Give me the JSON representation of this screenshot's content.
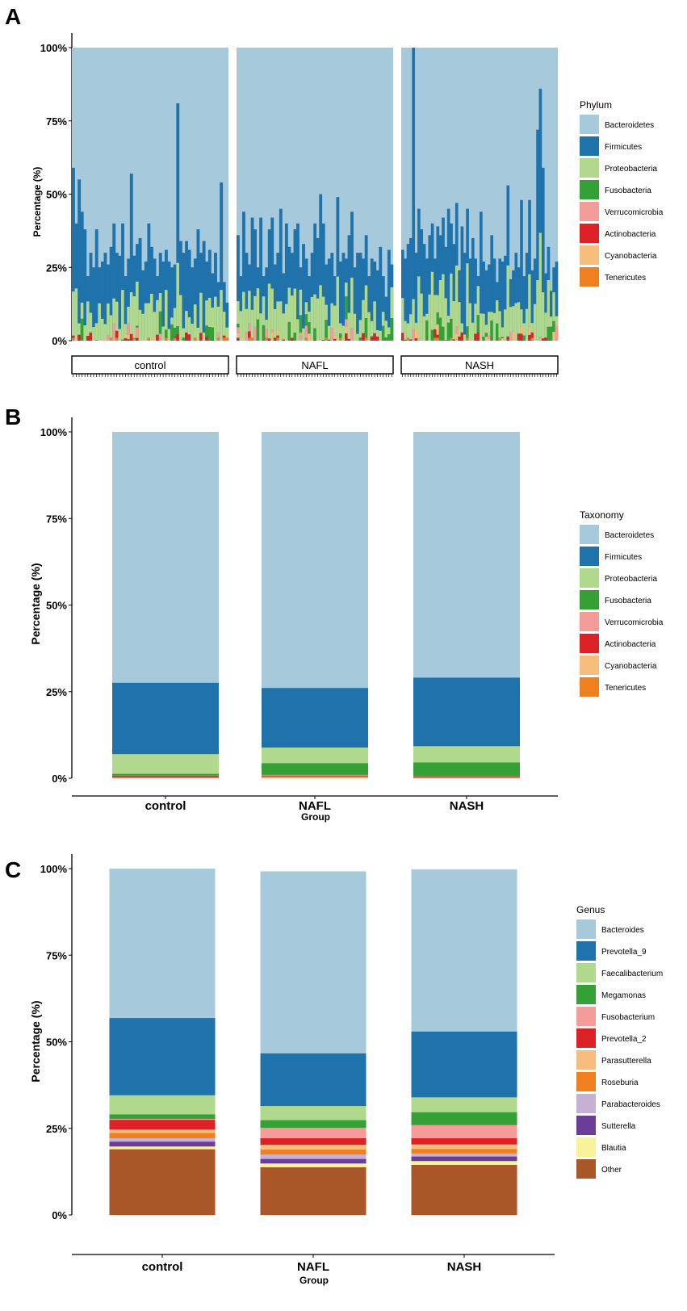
{
  "colors": {
    "Bacteroidetes": "#a6c9dc",
    "Firmicutes": "#1f72aa",
    "Proteobacteria": "#b1d98e",
    "Fusobacteria": "#35a035",
    "Verrucomicrobia": "#f39c9a",
    "Actinobacteria": "#dc2127",
    "Cyanobacteria": "#f6bd7c",
    "Tenericutes": "#f07f20"
  },
  "genus_colors": [
    "#a6c9dc",
    "#1f72aa",
    "#b1d98e",
    "#35a035",
    "#f39c9a",
    "#dc2127",
    "#f6bd7c",
    "#f07f20",
    "#c6b1d5",
    "#6a3d98",
    "#f8f29a",
    "#a95628"
  ],
  "chart_data": [
    {
      "panel": "A",
      "type": "bar",
      "stacked": true,
      "ylabel": "Percentage (%)",
      "yticks": [
        "0%",
        "25%",
        "50%",
        "75%",
        "100%"
      ],
      "ylim": [
        0,
        100
      ],
      "facets": [
        "control",
        "NAFL",
        "NASH"
      ],
      "legend_title": "Phylum",
      "legend": [
        "Bacteroidetes",
        "Firmicutes",
        "Proteobacteria",
        "Fusobacteria",
        "Verrucomicrobia",
        "Actinobacteria",
        "Cyanobacteria",
        "Tenericutes"
      ],
      "note": "Per-sample stacked bars; values are approximate cumulative top heights of non-Bacteroidetes taxa",
      "samples": {
        "control": [
          59,
          40,
          55,
          44,
          38,
          22,
          30,
          25,
          38,
          25,
          27,
          30,
          26,
          32,
          40,
          30,
          29,
          40,
          22,
          28,
          57,
          29,
          33,
          35,
          24,
          27,
          40,
          32,
          28,
          22,
          30,
          27,
          31,
          27,
          25,
          26,
          81,
          34,
          30,
          34,
          31,
          25,
          28,
          38,
          30,
          34,
          27,
          31,
          23,
          30,
          20,
          54,
          20,
          13
        ],
        "NAFL": [
          36,
          22,
          44,
          30,
          26,
          42,
          38,
          25,
          42,
          22,
          25,
          38,
          42,
          26,
          30,
          45,
          23,
          40,
          32,
          30,
          38,
          40,
          25,
          33,
          28,
          22,
          30,
          40,
          35,
          50,
          40,
          26,
          28,
          30,
          22,
          49,
          27,
          30,
          28,
          36,
          44,
          25,
          30,
          30,
          28,
          36,
          22,
          28,
          27,
          24,
          32,
          22,
          15,
          31,
          26
        ],
        "NASH": [
          31,
          28,
          33,
          35,
          100,
          30,
          45,
          38,
          33,
          28,
          36,
          40,
          28,
          39,
          36,
          42,
          32,
          45,
          40,
          33,
          47,
          24,
          39,
          30,
          45,
          28,
          35,
          28,
          22,
          44,
          27,
          24,
          26,
          36,
          28,
          20,
          28,
          27,
          29,
          53,
          21,
          24,
          30,
          25,
          48,
          22,
          30,
          48,
          24,
          28,
          72,
          86,
          59,
          23,
          32,
          17,
          25,
          27
        ]
      }
    },
    {
      "panel": "B",
      "type": "bar",
      "stacked": true,
      "legend_title": "Taxonomy",
      "ylabel": "Percentage (%)",
      "xlabel": "Group",
      "yticks": [
        "0%",
        "25%",
        "50%",
        "75%",
        "100%"
      ],
      "ylim": [
        0,
        100
      ],
      "categories": [
        "control",
        "NAFL",
        "NASH"
      ],
      "series": [
        {
          "name": "Tenericutes",
          "values": [
            0.2,
            0.2,
            0.2
          ]
        },
        {
          "name": "Cyanobacteria",
          "values": [
            0.1,
            0.3,
            0.1
          ]
        },
        {
          "name": "Actinobacteria",
          "values": [
            0.4,
            0.3,
            0.2
          ]
        },
        {
          "name": "Verrucomicrobia",
          "values": [
            0.1,
            0.2,
            0.1
          ]
        },
        {
          "name": "Fusobacteria",
          "values": [
            0.5,
            3.4,
            4.0
          ]
        },
        {
          "name": "Proteobacteria",
          "values": [
            5.7,
            4.5,
            4.7
          ]
        },
        {
          "name": "Firmicutes",
          "values": [
            20.6,
            17.2,
            19.8
          ]
        },
        {
          "name": "Bacteroidetes",
          "values": [
            72.4,
            73.9,
            70.9
          ]
        }
      ]
    },
    {
      "panel": "C",
      "type": "bar",
      "stacked": true,
      "legend_title": "Genus",
      "ylabel": "Percentage (%)",
      "xlabel": "Group",
      "yticks": [
        "0%",
        "25%",
        "50%",
        "75%",
        "100%"
      ],
      "ylim": [
        0,
        100
      ],
      "categories": [
        "control",
        "NAFL",
        "NASH"
      ],
      "legend": [
        "Bacteroides",
        "Prevotella_9",
        "Faecalibacterium",
        "Megamonas",
        "Fusobacterium",
        "Prevotella_2",
        "Parasutterella",
        "Roseburia",
        "Parabacteroides",
        "Sutterella",
        "Blautia",
        "Other"
      ],
      "series": [
        {
          "name": "Other",
          "values": [
            19.0,
            13.8,
            14.5
          ]
        },
        {
          "name": "Blautia",
          "values": [
            0.8,
            1.1,
            1.1
          ]
        },
        {
          "name": "Sutterella",
          "values": [
            1.4,
            1.3,
            1.3
          ]
        },
        {
          "name": "Parabacteroides",
          "values": [
            1.0,
            1.3,
            0.9
          ]
        },
        {
          "name": "Roseburia",
          "values": [
            1.5,
            1.4,
            1.3
          ]
        },
        {
          "name": "Parasutterella",
          "values": [
            1.0,
            1.4,
            1.3
          ]
        },
        {
          "name": "Prevotella_2",
          "values": [
            2.8,
            1.9,
            1.8
          ]
        },
        {
          "name": "Fusobacterium",
          "values": [
            0.3,
            3.0,
            3.8
          ]
        },
        {
          "name": "Megamonas",
          "values": [
            1.3,
            2.2,
            3.7
          ]
        },
        {
          "name": "Faecalibacterium",
          "values": [
            5.5,
            4.1,
            4.3
          ]
        },
        {
          "name": "Prevotella_9",
          "values": [
            22.3,
            15.2,
            19.0
          ]
        },
        {
          "name": "Bacteroides",
          "values": [
            43.1,
            52.5,
            46.8
          ]
        }
      ]
    }
  ]
}
